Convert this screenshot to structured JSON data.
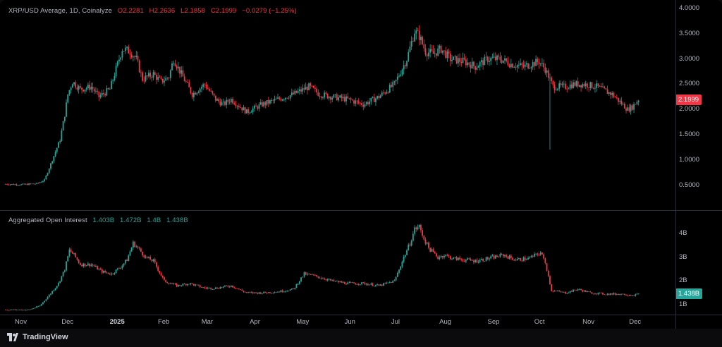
{
  "price_legend": {
    "title": "XRP/USD Average, 1D, Coinalyze",
    "open": "O2.2281",
    "high": "H2.2636",
    "low": "L2.1858",
    "close": "C2.1999",
    "change": "−0.0279 (−1.25%)"
  },
  "oi_legend": {
    "title": "Aggregated Open Interest",
    "v1": "1.403B",
    "v2": "1.472B",
    "v3": "1.4B",
    "v4": "1.438B"
  },
  "footer": {
    "brand": "TradingView"
  },
  "colors": {
    "up": "#26a69a",
    "down": "#f23645",
    "bg": "#000000",
    "grid": "#2a2e39"
  },
  "chart_data": [
    {
      "type": "candlestick",
      "title": "XRP/USD Average, 1D, Coinalyze",
      "ylim": [
        0.2,
        4.0
      ],
      "y_ticks": [
        "4.0000",
        "3.5000",
        "3.0000",
        "2.5000",
        "2.0000",
        "1.5000",
        "1.0000",
        "0.5000"
      ],
      "last_price_label": "2.1999",
      "x_ticks": [
        "Nov",
        "Dec",
        "2025",
        "Feb",
        "Mar",
        "Apr",
        "May",
        "Jun",
        "Jul",
        "Aug",
        "Sep",
        "Oct",
        "Nov",
        "Dec"
      ],
      "x_tick_days": [
        0,
        30,
        61,
        92,
        120,
        151,
        181,
        212,
        242,
        273,
        304,
        334,
        365,
        395
      ],
      "x_domain_days": [
        -10,
        418
      ],
      "price_path": [
        [
          -10,
          0.52
        ],
        [
          0,
          0.51
        ],
        [
          10,
          0.53
        ],
        [
          15,
          0.6
        ],
        [
          20,
          1.0
        ],
        [
          25,
          1.4
        ],
        [
          28,
          1.9
        ],
        [
          30,
          2.3
        ],
        [
          33,
          2.55
        ],
        [
          38,
          2.4
        ],
        [
          45,
          2.45
        ],
        [
          50,
          2.25
        ],
        [
          57,
          2.4
        ],
        [
          62,
          2.9
        ],
        [
          65,
          3.2
        ],
        [
          70,
          3.15
        ],
        [
          74,
          3.0
        ],
        [
          78,
          2.6
        ],
        [
          85,
          2.7
        ],
        [
          90,
          2.55
        ],
        [
          95,
          2.65
        ],
        [
          98,
          3.0
        ],
        [
          103,
          2.7
        ],
        [
          110,
          2.3
        ],
        [
          118,
          2.5
        ],
        [
          125,
          2.2
        ],
        [
          130,
          2.1
        ],
        [
          135,
          2.2
        ],
        [
          145,
          1.95
        ],
        [
          155,
          2.1
        ],
        [
          165,
          2.2
        ],
        [
          175,
          2.3
        ],
        [
          185,
          2.45
        ],
        [
          192,
          2.3
        ],
        [
          200,
          2.25
        ],
        [
          210,
          2.2
        ],
        [
          220,
          2.1
        ],
        [
          230,
          2.25
        ],
        [
          240,
          2.5
        ],
        [
          248,
          3.0
        ],
        [
          253,
          3.55
        ],
        [
          256,
          3.45
        ],
        [
          260,
          3.15
        ],
        [
          265,
          3.1
        ],
        [
          270,
          3.2
        ],
        [
          276,
          3.0
        ],
        [
          285,
          2.95
        ],
        [
          292,
          2.85
        ],
        [
          300,
          3.0
        ],
        [
          308,
          3.0
        ],
        [
          315,
          2.9
        ],
        [
          323,
          2.85
        ],
        [
          333,
          2.95
        ],
        [
          337,
          2.8
        ],
        [
          342,
          2.45
        ],
        [
          350,
          2.45
        ],
        [
          355,
          2.5
        ],
        [
          362,
          2.5
        ],
        [
          370,
          2.45
        ],
        [
          380,
          2.3
        ],
        [
          390,
          2.0
        ],
        [
          393,
          2.05
        ],
        [
          397,
          2.2
        ]
      ],
      "notable_wick": {
        "day": 340,
        "low": 1.2
      }
    },
    {
      "type": "line",
      "title": "Aggregated Open Interest",
      "y_ticks": [
        "4B",
        "3B",
        "2B",
        "1B"
      ],
      "ylim": [
        0.7,
        4.7
      ],
      "last_value_label": "1.438B",
      "oi_path": [
        [
          -10,
          0.78
        ],
        [
          5,
          0.78
        ],
        [
          12,
          0.95
        ],
        [
          18,
          1.4
        ],
        [
          24,
          1.9
        ],
        [
          28,
          2.5
        ],
        [
          31,
          3.3
        ],
        [
          34,
          3.1
        ],
        [
          38,
          2.7
        ],
        [
          45,
          2.7
        ],
        [
          52,
          2.4
        ],
        [
          58,
          2.3
        ],
        [
          64,
          2.6
        ],
        [
          68,
          2.9
        ],
        [
          72,
          3.6
        ],
        [
          75,
          3.4
        ],
        [
          80,
          3.0
        ],
        [
          85,
          2.85
        ],
        [
          92,
          2.0
        ],
        [
          100,
          1.8
        ],
        [
          108,
          1.9
        ],
        [
          118,
          1.7
        ],
        [
          125,
          1.7
        ],
        [
          135,
          1.8
        ],
        [
          145,
          1.5
        ],
        [
          155,
          1.5
        ],
        [
          165,
          1.55
        ],
        [
          175,
          1.65
        ],
        [
          182,
          2.3
        ],
        [
          190,
          2.2
        ],
        [
          200,
          2.0
        ],
        [
          210,
          1.9
        ],
        [
          220,
          1.9
        ],
        [
          230,
          1.8
        ],
        [
          240,
          2.0
        ],
        [
          246,
          3.0
        ],
        [
          250,
          3.6
        ],
        [
          253,
          4.2
        ],
        [
          256,
          4.3
        ],
        [
          259,
          3.8
        ],
        [
          262,
          3.4
        ],
        [
          268,
          3.0
        ],
        [
          272,
          3.1
        ],
        [
          278,
          2.95
        ],
        [
          285,
          2.9
        ],
        [
          292,
          2.85
        ],
        [
          300,
          2.95
        ],
        [
          310,
          3.1
        ],
        [
          318,
          2.9
        ],
        [
          326,
          2.95
        ],
        [
          334,
          3.2
        ],
        [
          337,
          2.8
        ],
        [
          341,
          1.6
        ],
        [
          350,
          1.5
        ],
        [
          358,
          1.65
        ],
        [
          366,
          1.5
        ],
        [
          376,
          1.45
        ],
        [
          386,
          1.45
        ],
        [
          393,
          1.4
        ],
        [
          397,
          1.44
        ]
      ]
    }
  ]
}
